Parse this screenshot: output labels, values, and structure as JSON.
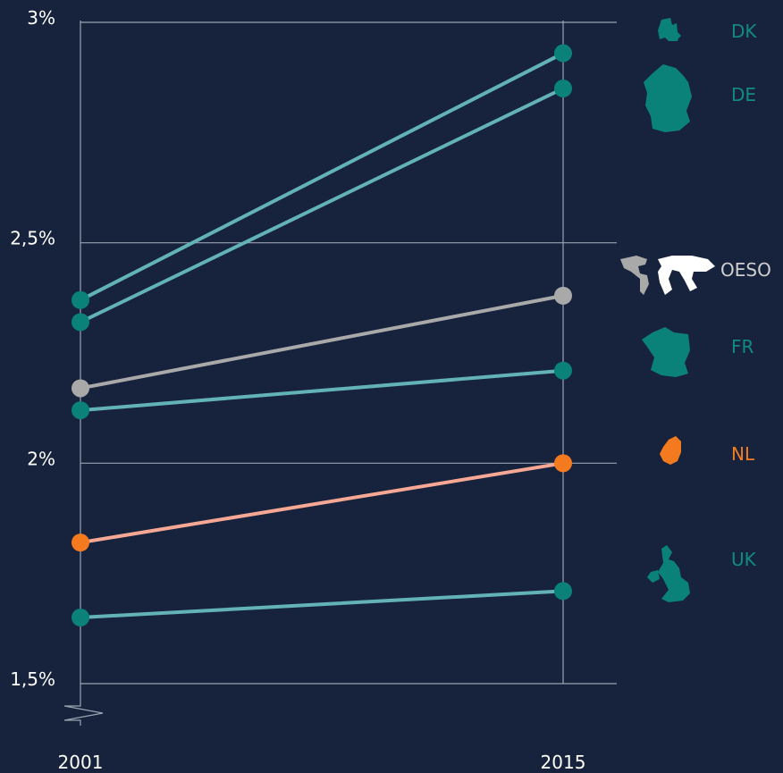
{
  "chart_data": {
    "type": "line",
    "title": "",
    "xlabel": "",
    "ylabel": "",
    "x": [
      "2001",
      "2015"
    ],
    "ylim": [
      1.5,
      3.0
    ],
    "y_ticks": [
      {
        "value": 3.0,
        "label": "3%"
      },
      {
        "value": 2.5,
        "label": "2,5%"
      },
      {
        "value": 2.0,
        "label": "2%"
      },
      {
        "value": 1.5,
        "label": "1,5%"
      }
    ],
    "axis_break": true,
    "grid": true,
    "legend": "right",
    "series": [
      {
        "name": "DK",
        "values": [
          2.37,
          2.93
        ],
        "color": "teal",
        "icon": "denmark-map-icon"
      },
      {
        "name": "DE",
        "values": [
          2.32,
          2.85
        ],
        "color": "teal",
        "icon": "germany-map-icon"
      },
      {
        "name": "OESO",
        "values": [
          2.17,
          2.38
        ],
        "color": "gray",
        "icon": "world-map-icon"
      },
      {
        "name": "FR",
        "values": [
          2.12,
          2.21
        ],
        "color": "teal",
        "icon": "france-map-icon"
      },
      {
        "name": "NL",
        "values": [
          1.82,
          2.0
        ],
        "color": "orange",
        "icon": "netherlands-map-icon"
      },
      {
        "name": "UK",
        "values": [
          1.65,
          1.71
        ],
        "color": "teal",
        "icon": "uk-map-icon"
      }
    ]
  },
  "colors": {
    "background": "#17233d",
    "grid": "#9aa3b2",
    "teal_line": "#62b2b7",
    "teal_dot": "#0b8279",
    "teal_text": "#138a80",
    "gray_line": "#a9a9a9",
    "gray_dot": "#a9a9a9",
    "gray_text": "#cfcfcf",
    "orange_line": "#f6a895",
    "orange_dot": "#f47a20",
    "orange_text": "#f47a20",
    "text": "#ffffff"
  }
}
